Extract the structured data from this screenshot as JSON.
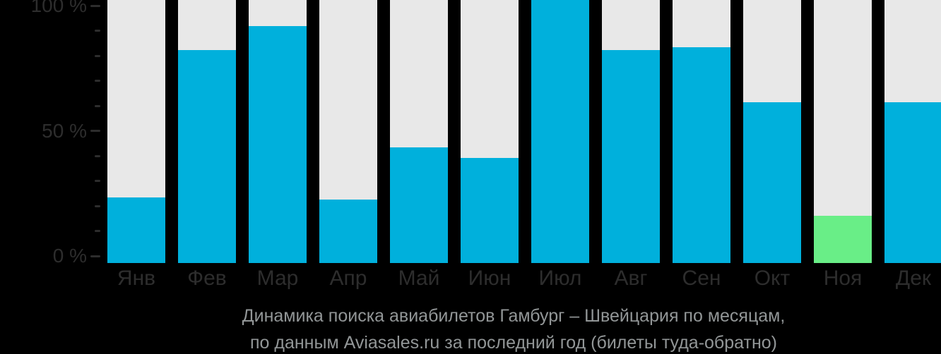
{
  "caption": {
    "line1": "Динамика поиска авиабилетов Гамбург – Швейцария по месяцам,",
    "line2": "по данным Aviasales.ru за последний год (билеты туда-обратно)"
  },
  "colors": {
    "background": "#000000",
    "bar": "#00b0dc",
    "bar_highlight": "#69ee87",
    "track": "#e8e8e8",
    "axis_text": "#2d2d2d",
    "caption_text": "#929697"
  },
  "chart_data": {
    "type": "bar",
    "title": "Динамика поиска авиабилетов Гамбург – Швейцария по месяцам, по данным Aviasales.ru за последний год (билеты туда-обратно)",
    "categories": [
      "Янв",
      "Фев",
      "Мар",
      "Апр",
      "Май",
      "Июн",
      "Июл",
      "Авг",
      "Сен",
      "Окт",
      "Ноя",
      "Дек"
    ],
    "values": [
      25,
      81,
      90,
      24,
      44,
      40,
      100,
      81,
      82,
      61,
      18,
      61
    ],
    "unit": "%",
    "highlight": {
      "index": 10,
      "category": "Ноя"
    },
    "xlabel": "",
    "ylabel": "",
    "ylim": [
      0,
      100
    ],
    "y_major_ticks": [
      {
        "value": 100,
        "label": "100 %"
      },
      {
        "value": 50,
        "label": "50 %"
      },
      {
        "value": 0,
        "label": "0 %"
      }
    ],
    "y_minor_tick_step": 10,
    "grid": false,
    "legend": false
  }
}
